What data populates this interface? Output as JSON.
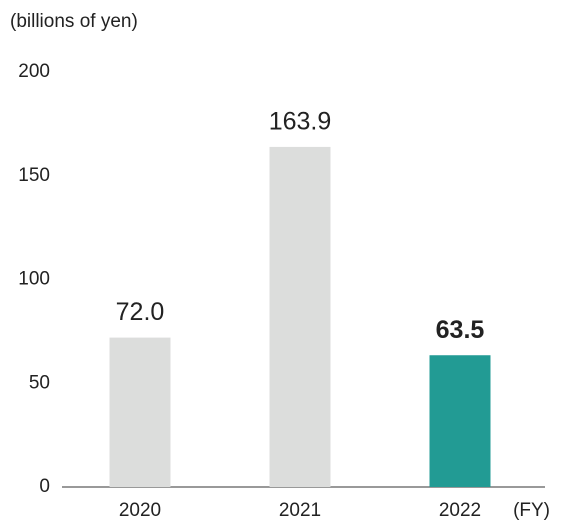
{
  "chart_data": {
    "type": "bar",
    "y_label": "(billions of yen)",
    "x_label": "(FY)",
    "categories": [
      "2020",
      "2021",
      "2022"
    ],
    "values": [
      72.0,
      163.9,
      63.5
    ],
    "value_labels": [
      "72.0",
      "163.9",
      "63.5"
    ],
    "colors": [
      "#dcdddc",
      "#dcdddc",
      "#229b94"
    ],
    "label_weights": [
      "normal",
      "normal",
      "bold"
    ],
    "ylim": [
      0,
      200
    ],
    "yticks": [
      0,
      50,
      100,
      150,
      200
    ],
    "grid": false
  }
}
